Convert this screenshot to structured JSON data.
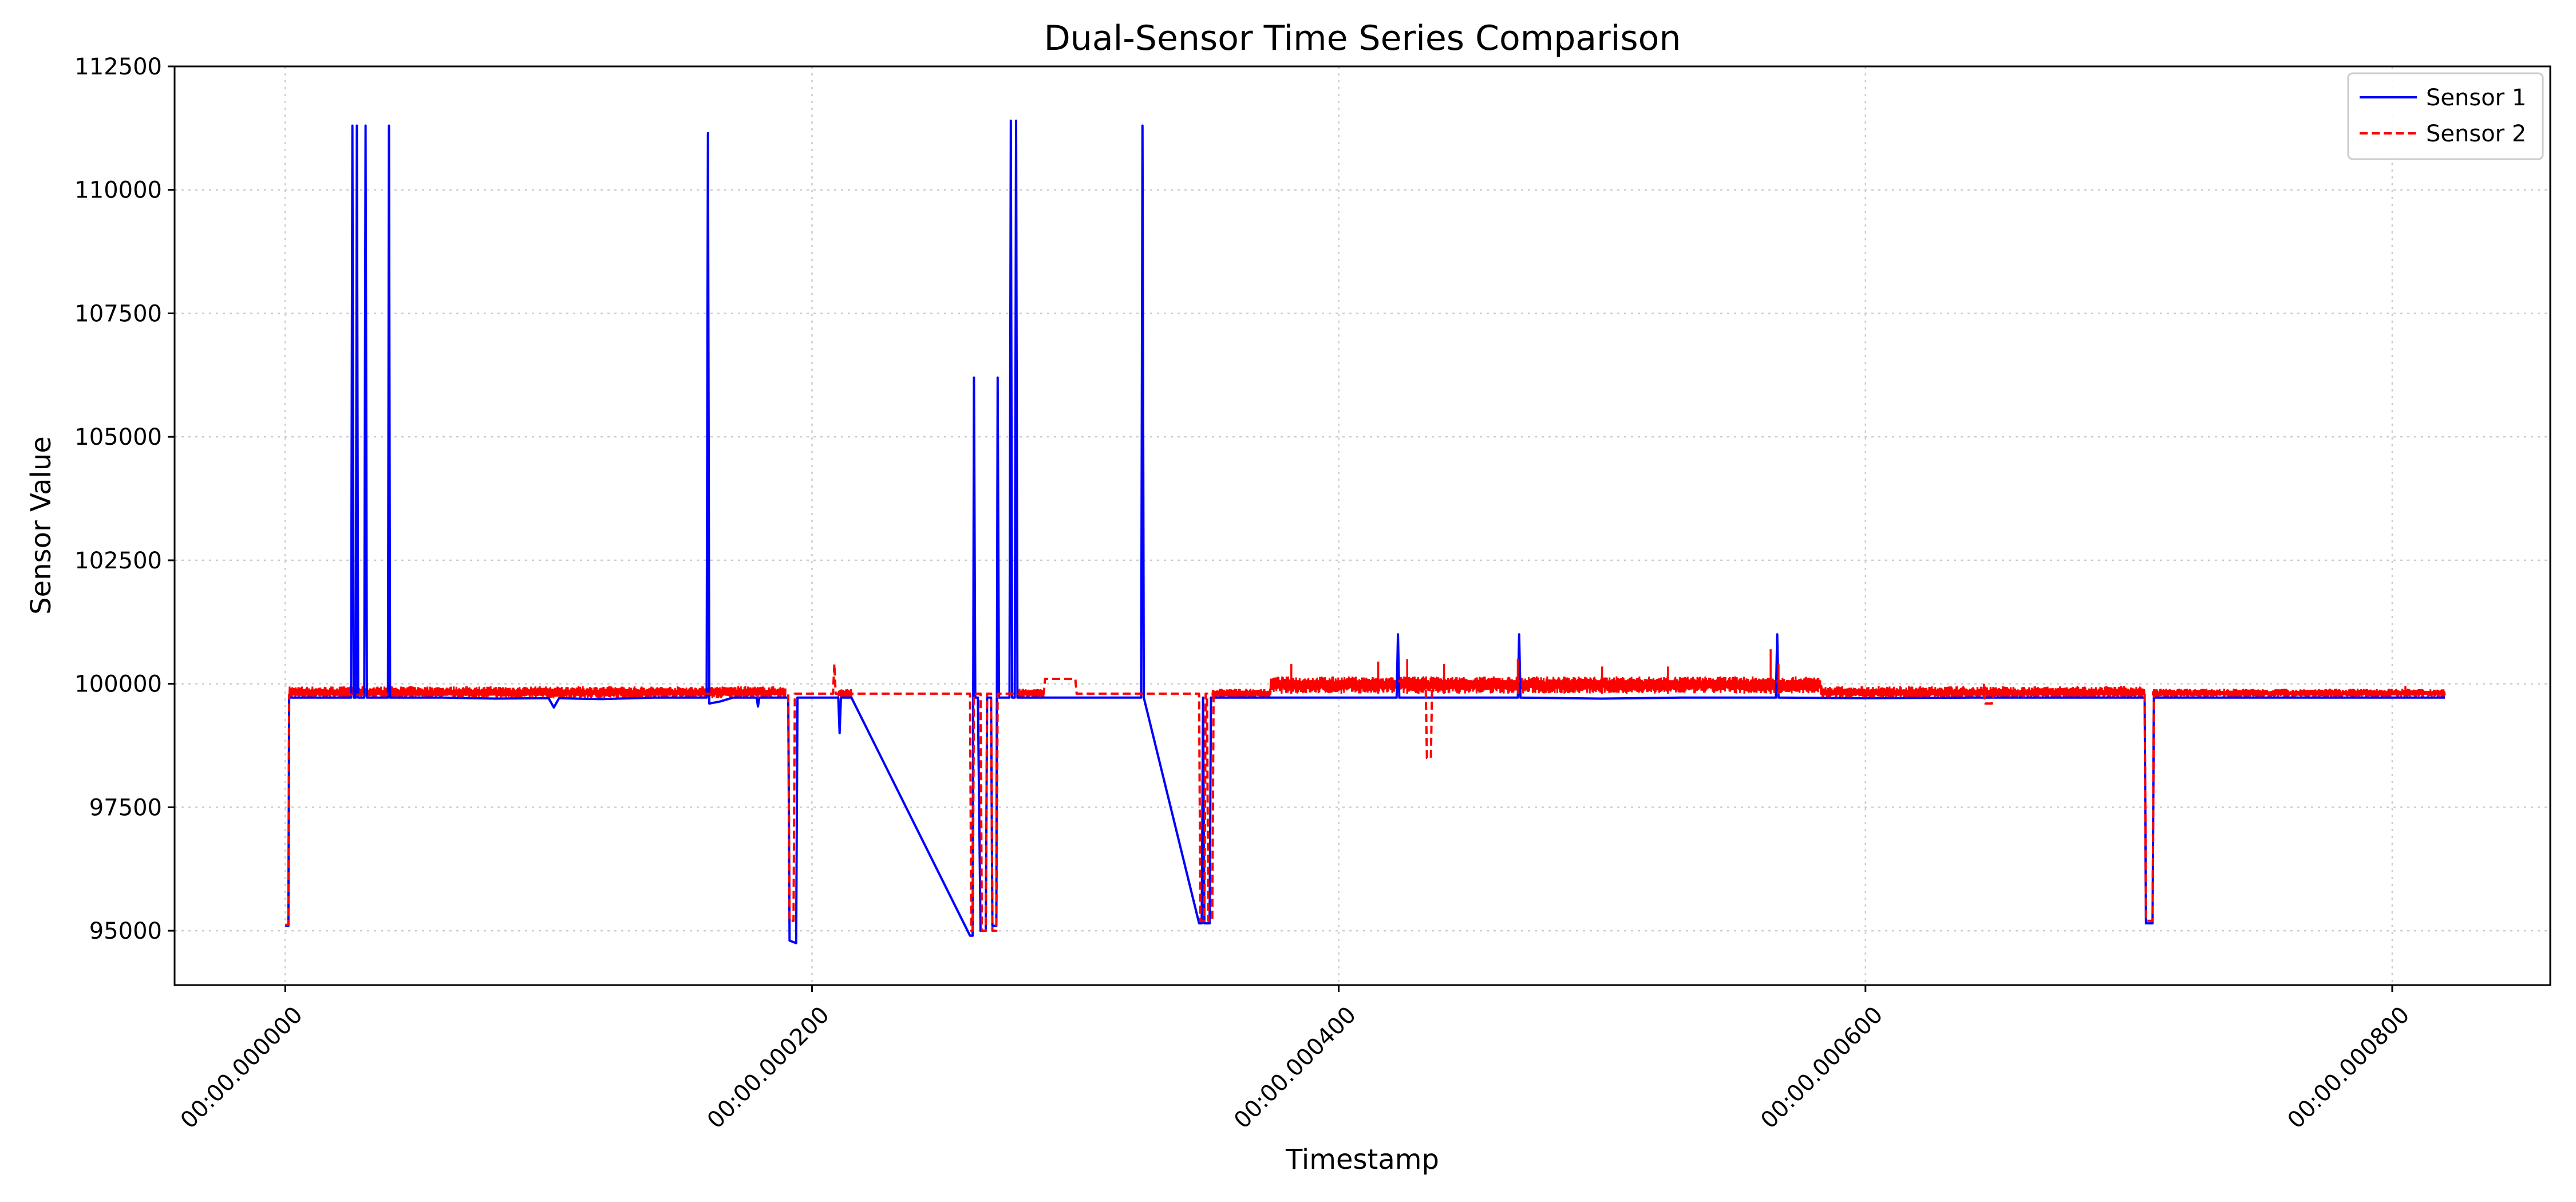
{
  "chart_data": {
    "type": "line",
    "title": "Dual-Sensor Time Series Comparison",
    "xlabel": "Timestamp",
    "ylabel": "Sensor Value",
    "x_range_us": [
      -42,
      860
    ],
    "ylim": [
      93900,
      112500
    ],
    "x_ticks": [
      {
        "value": 0,
        "label": "00:00.000000"
      },
      {
        "value": 200,
        "label": "00:00.000200"
      },
      {
        "value": 400,
        "label": "00:00.000400"
      },
      {
        "value": 600,
        "label": "00:00.000600"
      },
      {
        "value": 800,
        "label": "00:00.000800"
      }
    ],
    "y_ticks": [
      {
        "value": 95000,
        "label": "95000"
      },
      {
        "value": 97500,
        "label": "97500"
      },
      {
        "value": 100000,
        "label": "100000"
      },
      {
        "value": 102500,
        "label": "102500"
      },
      {
        "value": 105000,
        "label": "105000"
      },
      {
        "value": 107500,
        "label": "107500"
      },
      {
        "value": 110000,
        "label": "110000"
      },
      {
        "value": 112500,
        "label": "112500"
      }
    ],
    "grid": true,
    "legend_position": "top-right",
    "series": [
      {
        "name": "Sensor 1",
        "color": "#0000ff",
        "style": "solid",
        "points": [
          [
            0,
            95100
          ],
          [
            1.2,
            95100
          ],
          [
            1.5,
            99720
          ],
          [
            25,
            99720
          ],
          [
            25.5,
            111300
          ],
          [
            26,
            99720
          ],
          [
            26.8,
            99720
          ],
          [
            27.2,
            111300
          ],
          [
            27.7,
            99720
          ],
          [
            30,
            99720
          ],
          [
            30.5,
            111300
          ],
          [
            31,
            99720
          ],
          [
            39,
            99720
          ],
          [
            39.4,
            111300
          ],
          [
            39.8,
            99720
          ],
          [
            60,
            99720
          ],
          [
            80,
            99700
          ],
          [
            100,
            99710
          ],
          [
            102,
            99520
          ],
          [
            104,
            99710
          ],
          [
            110,
            99700
          ],
          [
            120,
            99690
          ],
          [
            140,
            99720
          ],
          [
            160,
            99720
          ],
          [
            160.5,
            111150
          ],
          [
            161,
            99600
          ],
          [
            165,
            99640
          ],
          [
            170,
            99720
          ],
          [
            179,
            99720
          ],
          [
            179.5,
            99540
          ],
          [
            180,
            99720
          ],
          [
            191,
            99720
          ],
          [
            191.5,
            94800
          ],
          [
            194,
            94750
          ],
          [
            194.5,
            99720
          ],
          [
            210,
            99720
          ],
          [
            210.5,
            99000
          ],
          [
            211,
            99720
          ],
          [
            215,
            99720
          ],
          [
            260,
            94900
          ],
          [
            261,
            94900
          ],
          [
            261.5,
            106200
          ],
          [
            262,
            99720
          ],
          [
            263,
            99720
          ],
          [
            264,
            95000
          ],
          [
            266,
            95000
          ],
          [
            266.5,
            99720
          ],
          [
            268,
            99720
          ],
          [
            268.5,
            95100
          ],
          [
            270,
            95100
          ],
          [
            270.5,
            106200
          ],
          [
            271,
            99720
          ],
          [
            275,
            99720
          ],
          [
            275.5,
            111400
          ],
          [
            276,
            99720
          ],
          [
            277,
            99720
          ],
          [
            277.5,
            111400
          ],
          [
            278,
            99720
          ],
          [
            300,
            99720
          ],
          [
            320,
            99720
          ],
          [
            325,
            99720
          ],
          [
            325.5,
            111300
          ],
          [
            326,
            99720
          ],
          [
            347,
            95150
          ],
          [
            348,
            95150
          ],
          [
            348.5,
            99720
          ],
          [
            349,
            95150
          ],
          [
            351,
            95150
          ],
          [
            351.5,
            99720
          ],
          [
            380,
            99720
          ],
          [
            400,
            99720
          ],
          [
            422,
            99720
          ],
          [
            422.5,
            101000
          ],
          [
            423,
            99720
          ],
          [
            450,
            99720
          ],
          [
            468,
            99720
          ],
          [
            468.5,
            101000
          ],
          [
            469,
            99720
          ],
          [
            500,
            99700
          ],
          [
            530,
            99720
          ],
          [
            566,
            99720
          ],
          [
            566.5,
            101000
          ],
          [
            567,
            99720
          ],
          [
            600,
            99710
          ],
          [
            640,
            99720
          ],
          [
            700,
            99720
          ],
          [
            706,
            99720
          ],
          [
            706.5,
            95150
          ],
          [
            709,
            95150
          ],
          [
            709.5,
            99720
          ],
          [
            750,
            99720
          ],
          [
            790,
            99720
          ],
          [
            820,
            99720
          ]
        ]
      },
      {
        "name": "Sensor 2",
        "color": "#ff0000",
        "style": "dashed",
        "points": [
          [
            0,
            95120
          ],
          [
            1.2,
            95120
          ],
          [
            1.5,
            99780
          ],
          [
            60,
            99780
          ],
          [
            160,
            99800
          ],
          [
            190,
            99800
          ],
          [
            191,
            99800
          ],
          [
            191.5,
            95200
          ],
          [
            193,
            95200
          ],
          [
            193.5,
            99800
          ],
          [
            208,
            99800
          ],
          [
            208.5,
            100400
          ],
          [
            209,
            99800
          ],
          [
            215,
            99800
          ],
          [
            260,
            99800
          ],
          [
            260.5,
            95000
          ],
          [
            261,
            95000
          ],
          [
            261.5,
            99800
          ],
          [
            264,
            99800
          ],
          [
            264.5,
            95000
          ],
          [
            266,
            95000
          ],
          [
            266.5,
            99800
          ],
          [
            268,
            99800
          ],
          [
            268.5,
            95000
          ],
          [
            270,
            95000
          ],
          [
            270.5,
            99800
          ],
          [
            288,
            99800
          ],
          [
            288.5,
            100100
          ],
          [
            300,
            100100
          ],
          [
            300.5,
            99800
          ],
          [
            325,
            99800
          ],
          [
            347,
            99800
          ],
          [
            347.5,
            95200
          ],
          [
            349,
            95200
          ],
          [
            349.5,
            99800
          ],
          [
            350,
            99800
          ],
          [
            350.5,
            95200
          ],
          [
            352,
            95200
          ],
          [
            352.5,
            99800
          ],
          [
            374,
            99800
          ],
          [
            374.5,
            100050
          ],
          [
            433,
            100050
          ],
          [
            433.5,
            98500
          ],
          [
            435,
            98500
          ],
          [
            435.5,
            100050
          ],
          [
            583,
            100050
          ],
          [
            583.5,
            99800
          ],
          [
            645,
            99800
          ],
          [
            645.5,
            99600
          ],
          [
            648,
            99600
          ],
          [
            648.5,
            99800
          ],
          [
            706,
            99800
          ],
          [
            706.5,
            95200
          ],
          [
            709,
            95200
          ],
          [
            709.5,
            99800
          ],
          [
            768,
            99800
          ],
          [
            820,
            99800
          ]
        ]
      }
    ],
    "noise_bands": [
      {
        "series": "Sensor 2",
        "x0": 1.5,
        "x1": 190,
        "min": 99700,
        "max": 99950
      },
      {
        "series": "Sensor 2",
        "x0": 210,
        "x1": 215,
        "min": 99700,
        "max": 99900
      },
      {
        "series": "Sensor 2",
        "x0": 278,
        "x1": 288,
        "min": 99700,
        "max": 99900
      },
      {
        "series": "Sensor 2",
        "x0": 352,
        "x1": 374,
        "min": 99700,
        "max": 99900
      },
      {
        "series": "Sensor 2",
        "x0": 374,
        "x1": 583,
        "min": 99800,
        "max": 100150
      },
      {
        "series": "Sensor 2",
        "x0": 583,
        "x1": 706,
        "min": 99700,
        "max": 99950
      },
      {
        "series": "Sensor 2",
        "x0": 709,
        "x1": 820,
        "min": 99720,
        "max": 99900
      }
    ],
    "spikes": [
      {
        "series": "Sensor 2",
        "x": 382,
        "y": 100400
      },
      {
        "series": "Sensor 2",
        "x": 415,
        "y": 100450
      },
      {
        "series": "Sensor 2",
        "x": 426,
        "y": 100500
      },
      {
        "series": "Sensor 2",
        "x": 440,
        "y": 100400
      },
      {
        "series": "Sensor 2",
        "x": 468,
        "y": 100500
      },
      {
        "series": "Sensor 2",
        "x": 500,
        "y": 100350
      },
      {
        "series": "Sensor 2",
        "x": 525,
        "y": 100350
      },
      {
        "series": "Sensor 2",
        "x": 564,
        "y": 100700
      },
      {
        "series": "Sensor 2",
        "x": 567,
        "y": 100400
      },
      {
        "series": "Sensor 2",
        "x": 605,
        "y": 99950
      },
      {
        "series": "Sensor 2",
        "x": 645,
        "y": 100000
      },
      {
        "series": "Sensor 2",
        "x": 805,
        "y": 99950
      }
    ]
  }
}
